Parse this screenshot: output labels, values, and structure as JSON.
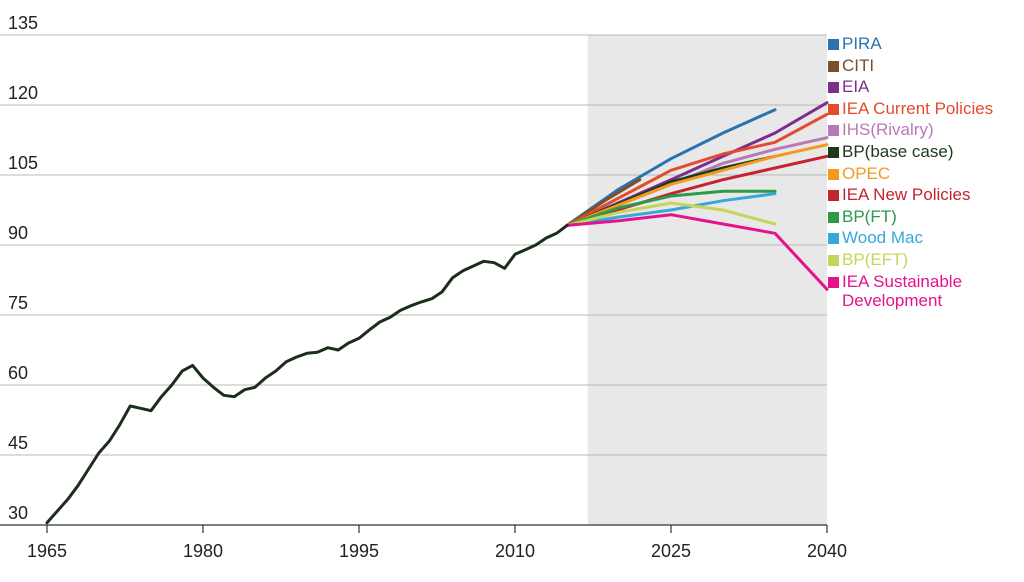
{
  "chart_data": {
    "type": "line",
    "x_ticks": [
      1965,
      1980,
      1995,
      2010,
      2025,
      2040
    ],
    "y_ticks": [
      30,
      45,
      60,
      75,
      90,
      105,
      120,
      135
    ],
    "xlim": [
      1965,
      2040
    ],
    "ylim": [
      30,
      135
    ],
    "grid": "horizontal",
    "projection_shade": {
      "from": 2017,
      "to": 2040,
      "color": "#e8e8e8"
    },
    "legend_position": "right",
    "historical": {
      "color": "#1b2e1b",
      "points": [
        [
          1965,
          30.5
        ],
        [
          1966,
          33
        ],
        [
          1967,
          35.5
        ],
        [
          1968,
          38.5
        ],
        [
          1969,
          42
        ],
        [
          1970,
          45.5
        ],
        [
          1971,
          48
        ],
        [
          1972,
          51.5
        ],
        [
          1973,
          55.5
        ],
        [
          1974,
          55
        ],
        [
          1975,
          54.5
        ],
        [
          1976,
          57.5
        ],
        [
          1977,
          60
        ],
        [
          1978,
          63
        ],
        [
          1979,
          64.2
        ],
        [
          1980,
          61.5
        ],
        [
          1981,
          59.5
        ],
        [
          1982,
          57.8
        ],
        [
          1983,
          57.5
        ],
        [
          1984,
          59
        ],
        [
          1985,
          59.5
        ],
        [
          1986,
          61.5
        ],
        [
          1987,
          63
        ],
        [
          1988,
          65
        ],
        [
          1989,
          66
        ],
        [
          1990,
          66.8
        ],
        [
          1991,
          67
        ],
        [
          1992,
          68
        ],
        [
          1993,
          67.5
        ],
        [
          1994,
          69
        ],
        [
          1995,
          70
        ],
        [
          1996,
          71.8
        ],
        [
          1997,
          73.5
        ],
        [
          1998,
          74.5
        ],
        [
          1999,
          76
        ],
        [
          2000,
          77
        ],
        [
          2001,
          77.8
        ],
        [
          2002,
          78.5
        ],
        [
          2003,
          80
        ],
        [
          2004,
          83
        ],
        [
          2005,
          84.5
        ],
        [
          2006,
          85.5
        ],
        [
          2007,
          86.5
        ],
        [
          2008,
          86.2
        ],
        [
          2009,
          85
        ],
        [
          2010,
          88
        ],
        [
          2011,
          89
        ],
        [
          2012,
          90
        ],
        [
          2013,
          91.5
        ],
        [
          2014,
          92.5
        ],
        [
          2015,
          94.2
        ]
      ]
    },
    "series": [
      {
        "name": "PIRA",
        "color": "#2b72b0",
        "points": [
          [
            2015,
            94.2
          ],
          [
            2020,
            102
          ],
          [
            2025,
            108.5
          ],
          [
            2030,
            114
          ],
          [
            2035,
            119
          ]
        ]
      },
      {
        "name": "CITI",
        "color": "#7b4f2a",
        "points": [
          [
            2015,
            94.2
          ],
          [
            2019,
            100
          ],
          [
            2022,
            104
          ]
        ]
      },
      {
        "name": "EIA",
        "color": "#7d2e8b",
        "points": [
          [
            2015,
            94.2
          ],
          [
            2025,
            104
          ],
          [
            2030,
            109
          ],
          [
            2035,
            114
          ],
          [
            2040,
            120.5
          ]
        ]
      },
      {
        "name": "IEA Current Policies",
        "color": "#e44a2c",
        "points": [
          [
            2015,
            94.2
          ],
          [
            2025,
            106
          ],
          [
            2030,
            109.5
          ],
          [
            2035,
            112
          ],
          [
            2040,
            118
          ]
        ]
      },
      {
        "name": "IHS(Rivalry)",
        "color": "#b979b8",
        "points": [
          [
            2015,
            94.2
          ],
          [
            2025,
            103
          ],
          [
            2030,
            107.5
          ],
          [
            2035,
            110.5
          ],
          [
            2040,
            113
          ]
        ]
      },
      {
        "name": "BP(base case)",
        "color": "#1a3a1a",
        "points": [
          [
            2015,
            94.2
          ],
          [
            2025,
            103.5
          ],
          [
            2030,
            106.5
          ],
          [
            2035,
            109
          ]
        ]
      },
      {
        "name": "OPEC",
        "color": "#f39a1e",
        "points": [
          [
            2015,
            94.2
          ],
          [
            2025,
            103
          ],
          [
            2030,
            106
          ],
          [
            2035,
            109
          ],
          [
            2040,
            111.5
          ]
        ]
      },
      {
        "name": "IEA New Policies",
        "color": "#c42430",
        "points": [
          [
            2015,
            94.2
          ],
          [
            2025,
            101
          ],
          [
            2030,
            104
          ],
          [
            2035,
            106.5
          ],
          [
            2040,
            109
          ]
        ]
      },
      {
        "name": "BP(FT)",
        "color": "#2c9a48",
        "points": [
          [
            2015,
            94.2
          ],
          [
            2020,
            98
          ],
          [
            2025,
            100.5
          ],
          [
            2030,
            101.5
          ],
          [
            2035,
            101.5
          ]
        ]
      },
      {
        "name": "Wood Mac",
        "color": "#36a8dc",
        "points": [
          [
            2015,
            94.2
          ],
          [
            2020,
            96
          ],
          [
            2025,
            97.5
          ],
          [
            2030,
            99.5
          ],
          [
            2035,
            101
          ]
        ]
      },
      {
        "name": "BP(EFT)",
        "color": "#c6d55a",
        "points": [
          [
            2015,
            94.2
          ],
          [
            2020,
            97
          ],
          [
            2025,
            99
          ],
          [
            2030,
            97.5
          ],
          [
            2035,
            94.5
          ]
        ]
      },
      {
        "name": "IEA Sustainable Development",
        "color": "#e4138c",
        "points": [
          [
            2015,
            94.2
          ],
          [
            2020,
            95.2
          ],
          [
            2025,
            96.5
          ],
          [
            2030,
            94.5
          ],
          [
            2035,
            92.5
          ],
          [
            2040,
            80.5
          ]
        ]
      }
    ]
  },
  "legend": [
    {
      "label": "PIRA",
      "color": "#2b72b0"
    },
    {
      "label": "CITI",
      "color": "#7b4f2a"
    },
    {
      "label": "EIA",
      "color": "#7d2e8b"
    },
    {
      "label": "IEA Current Policies",
      "color": "#e44a2c"
    },
    {
      "label": "IHS(Rivalry)",
      "color": "#b979b8"
    },
    {
      "label": "BP(base case)",
      "color": "#1a3a1a"
    },
    {
      "label": "OPEC",
      "color": "#f39a1e"
    },
    {
      "label": "IEA New Policies",
      "color": "#c42430"
    },
    {
      "label": "BP(FT)",
      "color": "#2c9a48"
    },
    {
      "label": "Wood Mac",
      "color": "#36a8dc"
    },
    {
      "label": "BP(EFT)",
      "color": "#c6d55a"
    },
    {
      "label": "IEA Sustainable\nDevelopment",
      "color": "#e4138c"
    }
  ]
}
